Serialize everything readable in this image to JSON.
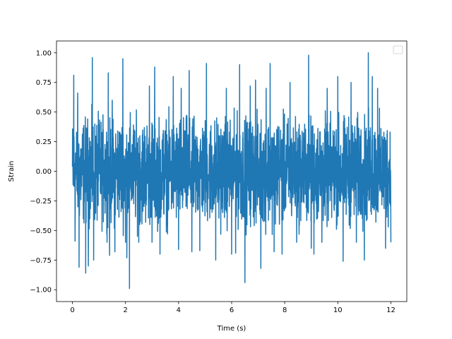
{
  "chart_data": {
    "type": "line",
    "title": "",
    "xlabel": "Time (s)",
    "ylabel": "Strain",
    "xlim": [
      -0.6,
      12.6
    ],
    "ylim": [
      -1.1,
      1.1
    ],
    "x_ticks": [
      0,
      2,
      4,
      6,
      8,
      10,
      12
    ],
    "x_tick_labels": [
      "0",
      "2",
      "4",
      "6",
      "8",
      "10",
      "12"
    ],
    "y_ticks": [
      1.0,
      0.75,
      0.5,
      0.25,
      0.0,
      -0.25,
      -0.5,
      -0.75,
      -1.0
    ],
    "y_tick_labels": [
      "1.00",
      "0.75",
      "0.50",
      "0.25",
      "0.00",
      "−0.25",
      "−0.50",
      "−0.75",
      "−1.00"
    ],
    "grid": false,
    "legend": {
      "placement": "top-right",
      "entries": []
    },
    "series": [
      {
        "color": "#1f77b4",
        "x_range": [
          0,
          12
        ],
        "y_min": -0.99,
        "y_max": 1.0,
        "typical_range": [
          -0.55,
          0.55
        ],
        "peaks": [
          {
            "x": 0.05,
            "y": 0.81
          },
          {
            "x": 0.1,
            "y": -0.59
          },
          {
            "x": 0.2,
            "y": 0.66
          },
          {
            "x": 0.25,
            "y": -0.81
          },
          {
            "x": 0.5,
            "y": -0.86
          },
          {
            "x": 0.6,
            "y": -0.8
          },
          {
            "x": 0.75,
            "y": 0.96
          },
          {
            "x": 0.8,
            "y": -0.75
          },
          {
            "x": 1.35,
            "y": 0.83
          },
          {
            "x": 1.4,
            "y": -0.71
          },
          {
            "x": 1.5,
            "y": 0.6
          },
          {
            "x": 1.6,
            "y": -0.68
          },
          {
            "x": 1.9,
            "y": 0.95
          },
          {
            "x": 2.0,
            "y": -0.6
          },
          {
            "x": 2.05,
            "y": -0.73
          },
          {
            "x": 2.15,
            "y": -0.99
          },
          {
            "x": 2.5,
            "y": -0.6
          },
          {
            "x": 2.9,
            "y": 0.72
          },
          {
            "x": 3.0,
            "y": -0.6
          },
          {
            "x": 3.1,
            "y": 0.88
          },
          {
            "x": 3.3,
            "y": -0.7
          },
          {
            "x": 3.8,
            "y": 0.8
          },
          {
            "x": 4.0,
            "y": -0.66
          },
          {
            "x": 4.1,
            "y": 0.7
          },
          {
            "x": 4.4,
            "y": 0.85
          },
          {
            "x": 4.5,
            "y": -0.68
          },
          {
            "x": 4.8,
            "y": -0.67
          },
          {
            "x": 5.05,
            "y": 0.91
          },
          {
            "x": 5.4,
            "y": -0.75
          },
          {
            "x": 5.8,
            "y": 0.7
          },
          {
            "x": 6.0,
            "y": -0.7
          },
          {
            "x": 6.15,
            "y": -0.69
          },
          {
            "x": 6.3,
            "y": 0.9
          },
          {
            "x": 6.5,
            "y": -0.94
          },
          {
            "x": 6.7,
            "y": 0.72
          },
          {
            "x": 6.9,
            "y": 0.77
          },
          {
            "x": 7.1,
            "y": -0.82
          },
          {
            "x": 7.3,
            "y": 0.7
          },
          {
            "x": 7.45,
            "y": 0.91
          },
          {
            "x": 7.6,
            "y": -0.68
          },
          {
            "x": 7.9,
            "y": -0.7
          },
          {
            "x": 8.2,
            "y": 0.75
          },
          {
            "x": 8.45,
            "y": -0.6
          },
          {
            "x": 8.9,
            "y": 0.98
          },
          {
            "x": 9.0,
            "y": -0.65
          },
          {
            "x": 9.1,
            "y": -0.7
          },
          {
            "x": 9.4,
            "y": -0.6
          },
          {
            "x": 9.6,
            "y": 0.7
          },
          {
            "x": 10.0,
            "y": 0.8
          },
          {
            "x": 10.2,
            "y": -0.76
          },
          {
            "x": 10.5,
            "y": 0.75
          },
          {
            "x": 10.7,
            "y": -0.6
          },
          {
            "x": 11.0,
            "y": -0.75
          },
          {
            "x": 11.15,
            "y": 1.0
          },
          {
            "x": 11.3,
            "y": 0.8
          },
          {
            "x": 11.5,
            "y": 0.7
          },
          {
            "x": 11.8,
            "y": -0.65
          },
          {
            "x": 12.0,
            "y": -0.6
          }
        ]
      }
    ]
  }
}
